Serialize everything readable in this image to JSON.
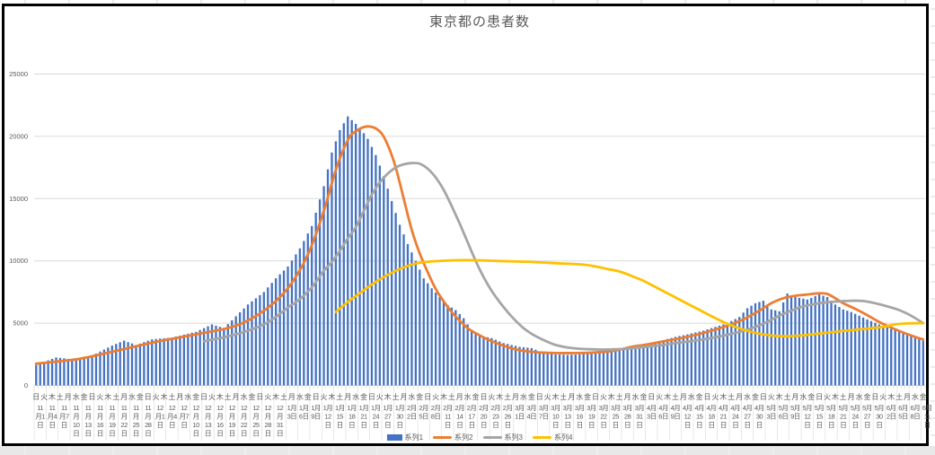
{
  "window": {
    "background": "#FFFFFF",
    "bottom_band_color": "#E8E8E8",
    "chart_border_color": "#000000",
    "spreadsheet_gridline_color": "#D9D9D9"
  },
  "chart": {
    "title": "東京都の患者数",
    "text_color": "#595959",
    "gridline_color": "#D9D9D9",
    "y_axis": {
      "tick_labels": [
        "0",
        "5000",
        "10000",
        "15000",
        "20000",
        "25000"
      ],
      "min": 0,
      "max": 25000,
      "step": 5000
    },
    "x_axis": {
      "weekday_cycle": "日火木土月水金",
      "weekday_interval_days": 2,
      "date_label_interval_days": 3
    },
    "legend": [
      {
        "label": "系列1",
        "color": "#4472C4",
        "swatch": "bar"
      },
      {
        "label": "系列2",
        "color": "#ED7D31",
        "swatch": "line"
      },
      {
        "label": "系列3",
        "color": "#A5A5A5",
        "swatch": "line"
      },
      {
        "label": "系列4",
        "color": "#FFC000",
        "swatch": "line"
      }
    ]
  },
  "chart_data": {
    "type": "bar",
    "title": "東京都の患者数",
    "ylim": [
      0,
      25000
    ],
    "grid": true,
    "legend_position": "bottom",
    "x_start_date": "11月1日",
    "x_end_date": "6月11日",
    "total_days": 223,
    "date_tick_labels": [
      "11月1日",
      "11月4日",
      "11月7日",
      "11月10日",
      "11月13日",
      "11月16日",
      "11月19日",
      "11月22日",
      "11月25日",
      "11月28日",
      "12月1日",
      "12月4日",
      "12月7日",
      "12月10日",
      "12月13日",
      "12月16日",
      "12月19日",
      "12月22日",
      "12月25日",
      "12月28日",
      "12月31日",
      "1月3日",
      "1月6日",
      "1月9日",
      "1月12日",
      "1月15日",
      "1月18日",
      "1月21日",
      "1月24日",
      "1月27日",
      "1月30日",
      "2月2日",
      "2月5日",
      "2月8日",
      "2月11日",
      "2月14日",
      "2月17日",
      "2月20日",
      "2月23日",
      "2月26日",
      "3月1日",
      "3月4日",
      "3月7日",
      "3月10日",
      "3月13日",
      "3月16日",
      "3月19日",
      "3月22日",
      "3月25日",
      "3月28日",
      "3月31日",
      "4月3日",
      "4月6日",
      "4月9日",
      "4月12日",
      "4月15日",
      "4月18日",
      "4月21日",
      "4月24日",
      "4月27日",
      "4月30日",
      "5月3日",
      "5月6日",
      "5月9日",
      "5月12日",
      "5月15日",
      "5月18日",
      "5月21日",
      "5月24日",
      "5月27日",
      "5月30日",
      "6月2日",
      "6月5日",
      "6月8日",
      "6月11日"
    ],
    "series": [
      {
        "name": "系列1",
        "type": "bar",
        "color": "#4472C4",
        "start_day": 0,
        "daily_values": [
          1650,
          1770,
          1890,
          2010,
          2130,
          2250,
          2210,
          2180,
          2140,
          2100,
          2160,
          2220,
          2280,
          2340,
          2400,
          2560,
          2720,
          2880,
          3040,
          3200,
          3330,
          3470,
          3600,
          3480,
          3370,
          3250,
          3360,
          3480,
          3590,
          3700,
          3730,
          3760,
          3790,
          3820,
          3850,
          3930,
          4000,
          4080,
          4150,
          4230,
          4300,
          4450,
          4600,
          4750,
          4900,
          4800,
          4700,
          4600,
          4920,
          5230,
          5550,
          5870,
          6180,
          6500,
          6750,
          7000,
          7250,
          7500,
          7870,
          8230,
          8600,
          8920,
          9230,
          9550,
          10030,
          10520,
          11000,
          11600,
          12200,
          12800,
          13870,
          14930,
          16000,
          17350,
          18700,
          19600,
          20500,
          21050,
          21600,
          21300,
          21000,
          20700,
          20250,
          19800,
          19150,
          18500,
          17650,
          16800,
          15800,
          14800,
          13850,
          12900,
          12130,
          11350,
          10680,
          10000,
          9300,
          8600,
          8200,
          7800,
          7450,
          7100,
          6780,
          6450,
          6250,
          6050,
          5730,
          5400,
          4900,
          4400,
          4200,
          4000,
          3930,
          3870,
          3800,
          3670,
          3530,
          3400,
          3330,
          3250,
          3180,
          3100,
          3070,
          3030,
          3000,
          2870,
          2730,
          2600,
          2570,
          2530,
          2500,
          2480,
          2470,
          2450,
          2470,
          2480,
          2500,
          2550,
          2600,
          2650,
          2700,
          2770,
          2830,
          2900,
          2930,
          2970,
          3000,
          3030,
          3070,
          3100,
          3170,
          3230,
          3300,
          3360,
          3430,
          3490,
          3550,
          3640,
          3730,
          3810,
          3900,
          3970,
          4030,
          4100,
          4180,
          4250,
          4330,
          4400,
          4500,
          4600,
          4700,
          4800,
          4900,
          5000,
          5170,
          5330,
          5500,
          5850,
          6200,
          6400,
          6600,
          6700,
          6800,
          6450,
          6100,
          6030,
          5950,
          6670,
          7380,
          7240,
          7100,
          7030,
          6970,
          6900,
          7030,
          7170,
          7300,
          7200,
          7100,
          6800,
          6500,
          6300,
          6100,
          6000,
          5900,
          5750,
          5600,
          5450,
          5300,
          5170,
          5030,
          4900,
          4780,
          4660,
          4550,
          4450,
          4350,
          4250,
          4130,
          4020,
          3900,
          3750,
          3600
        ]
      },
      {
        "name": "系列2",
        "type": "line",
        "color": "#ED7D31",
        "points": [
          [
            0,
            1750
          ],
          [
            10,
            2100
          ],
          [
            19,
            2700
          ],
          [
            30,
            3500
          ],
          [
            40,
            4100
          ],
          [
            50,
            4800
          ],
          [
            57,
            6000
          ],
          [
            63,
            7800
          ],
          [
            68,
            10500
          ],
          [
            72,
            14000
          ],
          [
            75,
            17300
          ],
          [
            78,
            19700
          ],
          [
            80,
            20400
          ],
          [
            83,
            20800
          ],
          [
            86,
            20400
          ],
          [
            88,
            19300
          ],
          [
            90,
            17500
          ],
          [
            92,
            15000
          ],
          [
            94,
            12500
          ],
          [
            96,
            10600
          ],
          [
            98,
            9100
          ],
          [
            100,
            7750
          ],
          [
            102,
            6750
          ],
          [
            104,
            5900
          ],
          [
            106,
            5200
          ],
          [
            108,
            4600
          ],
          [
            110,
            4200
          ],
          [
            113,
            3700
          ],
          [
            116,
            3300
          ],
          [
            120,
            2900
          ],
          [
            124,
            2700
          ],
          [
            128,
            2620
          ],
          [
            135,
            2600
          ],
          [
            140,
            2650
          ],
          [
            145,
            2800
          ],
          [
            149,
            3100
          ],
          [
            153,
            3300
          ],
          [
            158,
            3600
          ],
          [
            163,
            3900
          ],
          [
            168,
            4300
          ],
          [
            173,
            4800
          ],
          [
            177,
            5300
          ],
          [
            181,
            6000
          ],
          [
            184,
            6600
          ],
          [
            187,
            7000
          ],
          [
            190,
            7200
          ],
          [
            193,
            7300
          ],
          [
            196,
            7400
          ],
          [
            198,
            7350
          ],
          [
            200,
            7000
          ],
          [
            202,
            6600
          ],
          [
            205,
            6150
          ],
          [
            208,
            5650
          ],
          [
            211,
            5100
          ],
          [
            214,
            4650
          ],
          [
            217,
            4250
          ],
          [
            220,
            3900
          ],
          [
            222,
            3700
          ]
        ]
      },
      {
        "name": "系列3",
        "type": "line",
        "color": "#A5A5A5",
        "points": [
          [
            42,
            3550
          ],
          [
            46,
            3800
          ],
          [
            50,
            4100
          ],
          [
            53,
            4400
          ],
          [
            57,
            4900
          ],
          [
            60,
            5500
          ],
          [
            63,
            6250
          ],
          [
            66,
            6930
          ],
          [
            69,
            7880
          ],
          [
            72,
            9200
          ],
          [
            74,
            9900
          ],
          [
            76,
            10800
          ],
          [
            78,
            11800
          ],
          [
            80,
            12700
          ],
          [
            82,
            14000
          ],
          [
            84,
            15300
          ],
          [
            86,
            16300
          ],
          [
            88,
            17000
          ],
          [
            90,
            17500
          ],
          [
            92,
            17750
          ],
          [
            94,
            17850
          ],
          [
            96,
            17800
          ],
          [
            98,
            17400
          ],
          [
            100,
            16700
          ],
          [
            102,
            15700
          ],
          [
            104,
            14400
          ],
          [
            106,
            13000
          ],
          [
            108,
            11500
          ],
          [
            110,
            10000
          ],
          [
            112,
            8700
          ],
          [
            114,
            7600
          ],
          [
            116,
            6700
          ],
          [
            118,
            5900
          ],
          [
            120,
            5200
          ],
          [
            122,
            4600
          ],
          [
            124,
            4150
          ],
          [
            126,
            3800
          ],
          [
            128,
            3500
          ],
          [
            130,
            3250
          ],
          [
            133,
            3050
          ],
          [
            136,
            2950
          ],
          [
            139,
            2900
          ],
          [
            142,
            2880
          ],
          [
            145,
            2900
          ],
          [
            148,
            2950
          ],
          [
            151,
            3050
          ],
          [
            154,
            3150
          ],
          [
            157,
            3250
          ],
          [
            160,
            3400
          ],
          [
            164,
            3550
          ],
          [
            168,
            3750
          ],
          [
            172,
            4000
          ],
          [
            176,
            4300
          ],
          [
            180,
            4700
          ],
          [
            183,
            5100
          ],
          [
            186,
            5600
          ],
          [
            189,
            6000
          ],
          [
            192,
            6350
          ],
          [
            195,
            6550
          ],
          [
            198,
            6680
          ],
          [
            201,
            6750
          ],
          [
            204,
            6800
          ],
          [
            207,
            6780
          ],
          [
            210,
            6600
          ],
          [
            213,
            6350
          ],
          [
            216,
            6050
          ],
          [
            219,
            5600
          ],
          [
            222,
            5000
          ]
        ]
      },
      {
        "name": "系列4",
        "type": "line",
        "color": "#FFC000",
        "points": [
          [
            75,
            5900
          ],
          [
            78,
            6700
          ],
          [
            81,
            7400
          ],
          [
            84,
            8100
          ],
          [
            87,
            8700
          ],
          [
            90,
            9200
          ],
          [
            93,
            9600
          ],
          [
            96,
            9850
          ],
          [
            100,
            9980
          ],
          [
            105,
            10050
          ],
          [
            110,
            10050
          ],
          [
            115,
            10000
          ],
          [
            120,
            9950
          ],
          [
            125,
            9900
          ],
          [
            131,
            9800
          ],
          [
            137,
            9700
          ],
          [
            140,
            9550
          ],
          [
            143,
            9350
          ],
          [
            146,
            9150
          ],
          [
            149,
            8800
          ],
          [
            152,
            8400
          ],
          [
            155,
            7900
          ],
          [
            158,
            7400
          ],
          [
            161,
            6900
          ],
          [
            164,
            6400
          ],
          [
            167,
            5900
          ],
          [
            170,
            5400
          ],
          [
            173,
            4950
          ],
          [
            176,
            4600
          ],
          [
            179,
            4300
          ],
          [
            182,
            4100
          ],
          [
            185,
            3980
          ],
          [
            188,
            3950
          ],
          [
            191,
            4000
          ],
          [
            194,
            4100
          ],
          [
            197,
            4200
          ],
          [
            200,
            4300
          ],
          [
            203,
            4400
          ],
          [
            206,
            4500
          ],
          [
            209,
            4600
          ],
          [
            212,
            4700
          ],
          [
            215,
            4900
          ],
          [
            218,
            4980
          ],
          [
            222,
            5000
          ]
        ]
      }
    ]
  }
}
